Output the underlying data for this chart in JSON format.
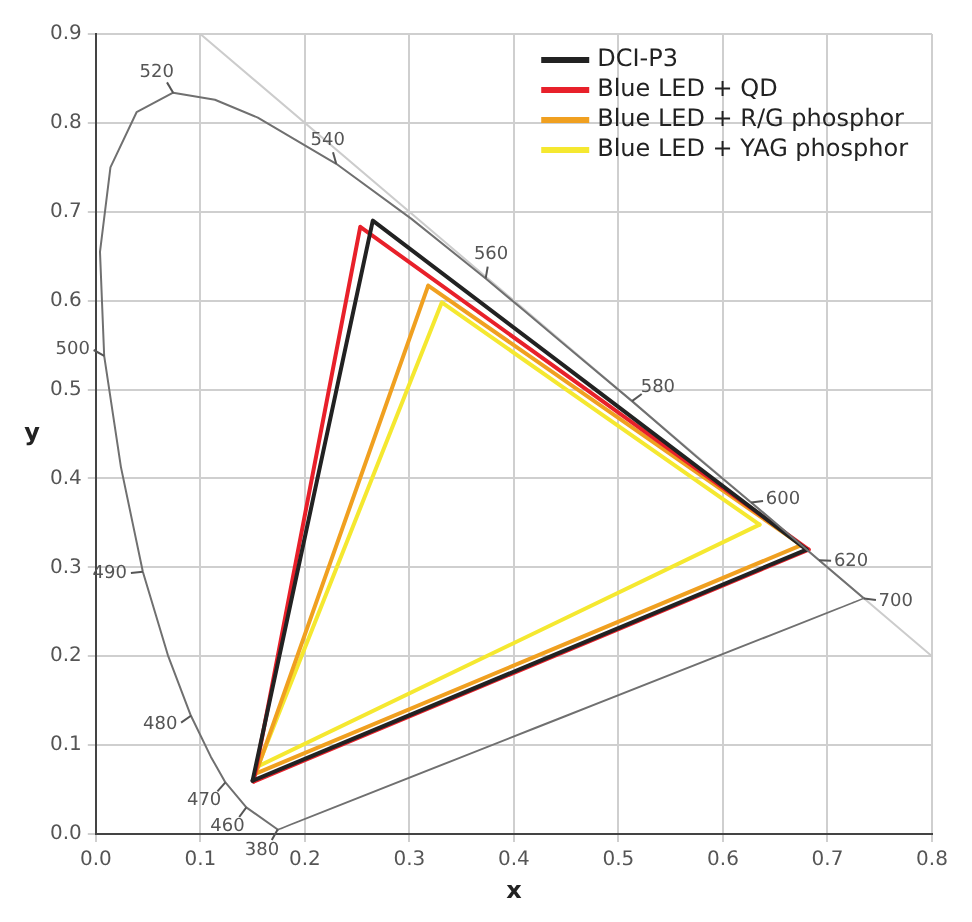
{
  "chart_data": {
    "type": "line",
    "xlabel": "x",
    "ylabel": "y",
    "xlim": [
      0,
      0.8
    ],
    "ylim": [
      0,
      0.9
    ],
    "xticks": [
      {
        "value": 0,
        "label": "0.0"
      },
      0.1,
      0.2,
      0.3,
      0.4,
      0.5,
      0.6,
      0.7,
      0.8
    ],
    "yticks": [
      {
        "value": 0,
        "label": "0.0"
      },
      0.1,
      0.2,
      0.3,
      0.4,
      0.5,
      0.6,
      0.7,
      0.8,
      0.9
    ],
    "grid": true,
    "legend": "top right",
    "marker": "none",
    "line_style": "solid",
    "series": [
      {
        "color": "#707070",
        "x": [
          0.174,
          0.144,
          0.124,
          0.11,
          0.091,
          0.069,
          0.045,
          0.024,
          0.008,
          0.004
        ],
        "values": [
          0.005,
          0.03,
          0.058,
          0.087,
          0.133,
          0.201,
          0.295,
          0.413,
          0.538,
          0.655
        ]
      },
      {
        "color": "#707070",
        "x": [
          0.004,
          0.014,
          0.039,
          0.074,
          0.114,
          0.155,
          0.23,
          0.302,
          0.373,
          0.444,
          0.513,
          0.575,
          0.627,
          0.666,
          0.692,
          0.719,
          0.735
        ],
        "values": [
          0.655,
          0.75,
          0.812,
          0.834,
          0.826,
          0.806,
          0.754,
          0.692,
          0.625,
          0.555,
          0.487,
          0.424,
          0.373,
          0.334,
          0.308,
          0.281,
          0.265
        ]
      },
      {
        "color": "#707070",
        "x": [
          0.735,
          0.174
        ],
        "values": [
          0.265,
          0.005
        ]
      },
      {
        "name": "DCI-P3",
        "color": "#222222",
        "x": [
          0.68,
          0.265,
          0.15
        ],
        "values": [
          0.32,
          0.69,
          0.06
        ]
      },
      {
        "color": "#222222",
        "x": [
          0.15,
          0.68
        ],
        "values": [
          0.06,
          0.32
        ]
      },
      {
        "name": "Blue LED + QD",
        "color": "#e8202a",
        "x": [
          0.682,
          0.253,
          0.151
        ],
        "values": [
          0.32,
          0.683,
          0.059
        ]
      },
      {
        "color": "#e8202a",
        "x": [
          0.151,
          0.682
        ],
        "values": [
          0.059,
          0.32
        ]
      },
      {
        "name": "Blue LED + R/G phosphor",
        "color": "#f0a020",
        "x": [
          0.675,
          0.318,
          0.153
        ],
        "values": [
          0.325,
          0.617,
          0.068
        ]
      },
      {
        "color": "#f0a020",
        "x": [
          0.153,
          0.675
        ],
        "values": [
          0.068,
          0.325
        ]
      },
      {
        "name": "Blue LED + YAG phosphor",
        "color": "#f5e830",
        "x": [
          0.635,
          0.331,
          0.155
        ],
        "values": [
          0.348,
          0.598,
          0.076
        ]
      },
      {
        "color": "#f5e830",
        "x": [
          0.155,
          0.635
        ],
        "values": [
          0.076,
          0.348
        ]
      },
      {
        "color": "#cccccc",
        "x": [
          0.1,
          0.8
        ],
        "values": [
          0.9,
          0.2
        ]
      }
    ],
    "annotations": [
      {
        "text": "520",
        "x": 0.074,
        "y": 0.834
      },
      {
        "text": "540",
        "x": 0.23,
        "y": 0.754
      },
      {
        "text": "560",
        "x": 0.373,
        "y": 0.625
      },
      {
        "text": "580",
        "x": 0.513,
        "y": 0.487
      },
      {
        "text": "600",
        "x": 0.627,
        "y": 0.373
      },
      {
        "text": "620",
        "x": 0.692,
        "y": 0.308
      },
      {
        "text": "700",
        "x": 0.735,
        "y": 0.265
      },
      {
        "text": "500",
        "x": 0.008,
        "y": 0.538
      },
      {
        "text": "490",
        "x": 0.045,
        "y": 0.295
      },
      {
        "text": "480",
        "x": 0.091,
        "y": 0.133
      },
      {
        "text": "470",
        "x": 0.124,
        "y": 0.058
      },
      {
        "text": "460",
        "x": 0.144,
        "y": 0.03
      },
      {
        "text": "380",
        "x": 0.174,
        "y": 0.005
      }
    ]
  }
}
